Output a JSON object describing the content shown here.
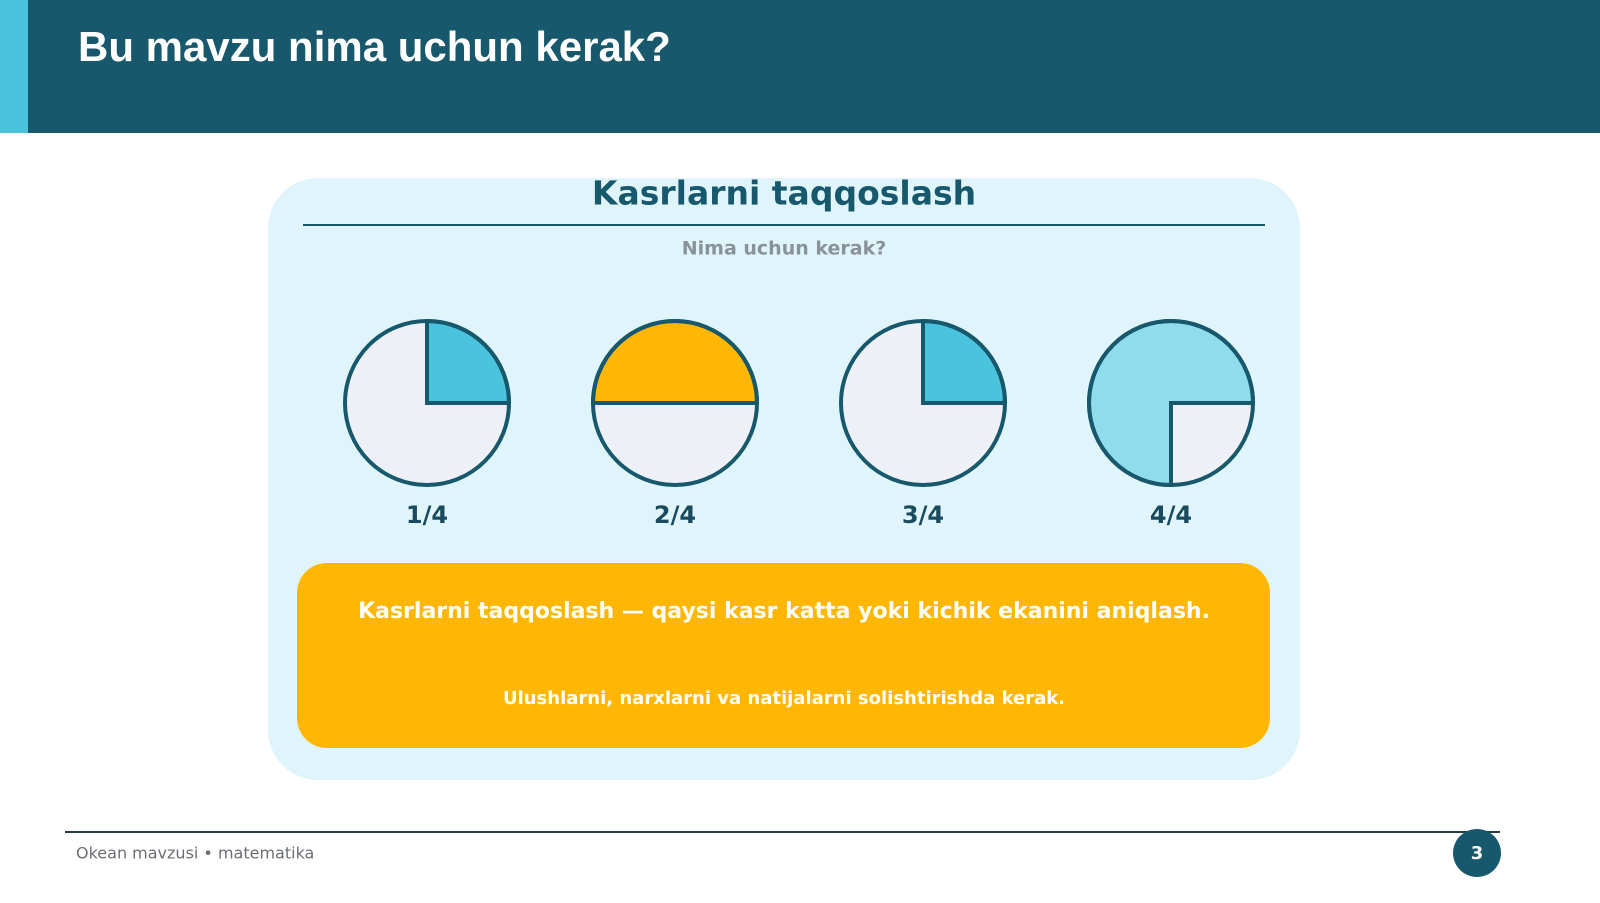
{
  "header": {
    "title": "Bu mavzu nima uchun kerak?"
  },
  "panel": {
    "title": "Kasrlarni taqqoslash",
    "subtitle": "Nima uchun kerak?",
    "fractions": [
      "1/4",
      "2/4",
      "3/4",
      "4/4"
    ]
  },
  "callout": {
    "main": "Kasrlarni taqqoslash — qaysi kasr katta yoki kichik ekanini aniqlash.",
    "sub": "Ulushlarni, narxlarni va natijalarni solishtirishda kerak."
  },
  "footer": {
    "text": "Okean mavzusi • matematika",
    "page": "3"
  }
}
